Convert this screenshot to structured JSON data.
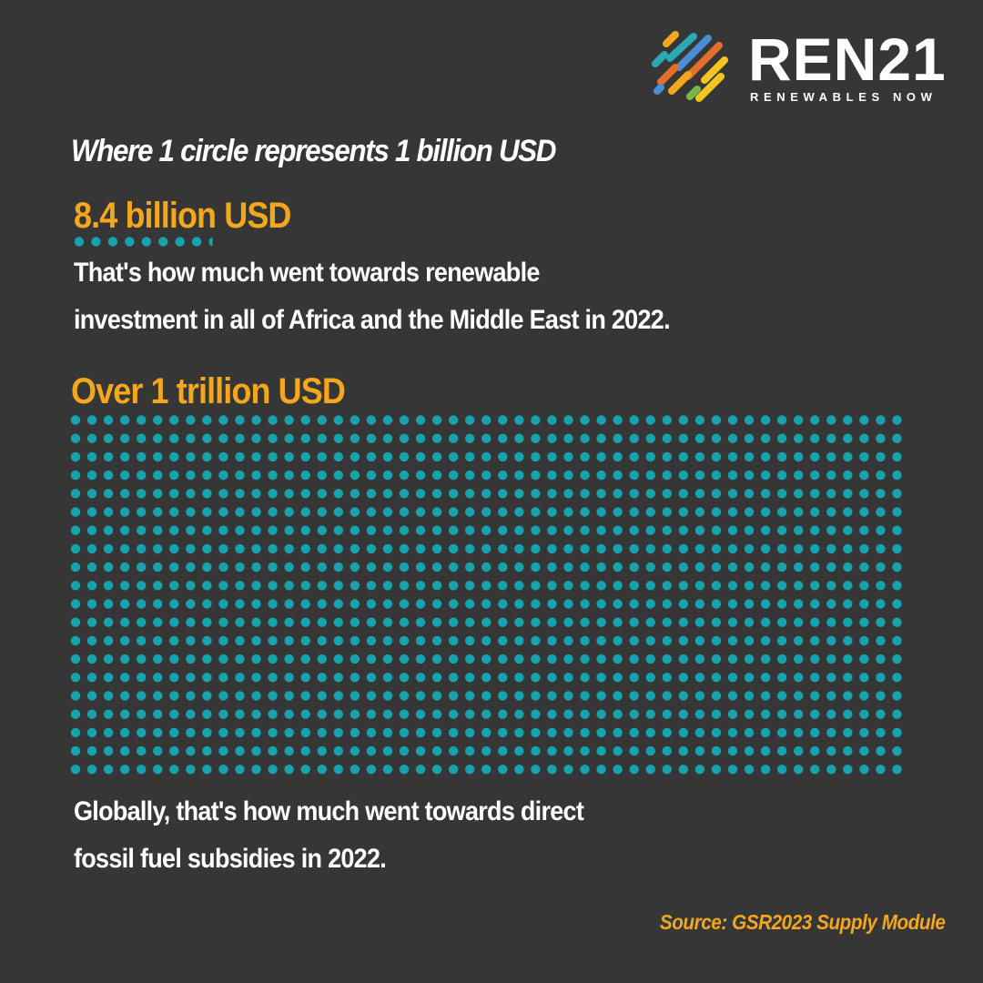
{
  "brand": {
    "name": "REN21",
    "tagline": "RENEWABLES NOW",
    "logo_colors": [
      "#f3a71c",
      "#e3702a",
      "#2aa8b3",
      "#4a8fd3",
      "#f4c51e",
      "#7ab648"
    ]
  },
  "subtitle": "Where 1 circle represents 1 billion USD",
  "section1": {
    "label": "8.4 billion USD",
    "line1": "That's how much went towards renewable",
    "line2": "investment in all of Africa and the Middle East in 2022."
  },
  "section2": {
    "label": "Over 1 trillion USD",
    "line1": "Globally, that's how much went towards direct",
    "line2": "fossil fuel subsidies in 2022."
  },
  "source": "Source: GSR2023 Supply Module",
  "colors": {
    "background": "#363636",
    "accent": "#f3a71c",
    "dot": "#17a3ad",
    "text": "#ffffff"
  },
  "chart_data": {
    "type": "pictogram",
    "unit": "1 circle = 1 billion USD",
    "series": [
      {
        "name": "8.4 billion USD",
        "values": [
          8.4
        ]
      },
      {
        "name": "Over 1 trillion USD",
        "values": [
          1000
        ]
      }
    ]
  }
}
